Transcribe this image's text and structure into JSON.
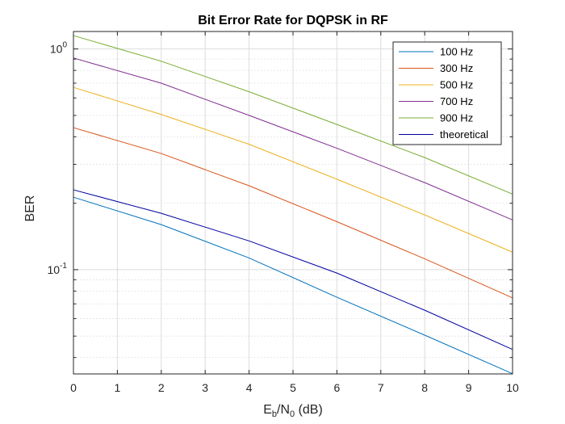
{
  "chart_data": {
    "type": "line",
    "title": "Bit Error Rate for DQPSK in RF",
    "xlabel": {
      "main": "E",
      "sub1": "b",
      "mid": "/N",
      "sub2": "0",
      "unit": " (dB)"
    },
    "ylabel": "BER",
    "xlim": [
      0,
      10
    ],
    "ylim": [
      0.0337,
      1.2
    ],
    "yscale": "log",
    "grid": true,
    "minor_grid": true,
    "legend_position": "top-right",
    "x_ticks": [
      {
        "value": 0,
        "label": "0"
      },
      {
        "value": 1,
        "label": "1"
      },
      {
        "value": 2,
        "label": "2"
      },
      {
        "value": 3,
        "label": "3"
      },
      {
        "value": 4,
        "label": "4"
      },
      {
        "value": 5,
        "label": "5"
      },
      {
        "value": 6,
        "label": "6"
      },
      {
        "value": 7,
        "label": "7"
      },
      {
        "value": 8,
        "label": "8"
      },
      {
        "value": 9,
        "label": "9"
      },
      {
        "value": 10,
        "label": "10"
      }
    ],
    "y_ticks": [
      {
        "value": 1,
        "base": "10",
        "exp": "0"
      },
      {
        "value": 0.1,
        "base": "10",
        "exp": "-1"
      }
    ],
    "x": [
      0,
      2,
      4,
      6,
      8,
      10
    ],
    "series": [
      {
        "name": "100 Hz",
        "color": "#0072BD",
        "values": [
          0.213,
          0.16,
          0.113,
          0.075,
          0.0505,
          0.0338
        ]
      },
      {
        "name": "300 Hz",
        "color": "#D95319",
        "values": [
          0.44,
          0.336,
          0.24,
          0.165,
          0.112,
          0.0745
        ]
      },
      {
        "name": "500 Hz",
        "color": "#EDB120",
        "values": [
          0.67,
          0.505,
          0.37,
          0.257,
          0.177,
          0.12
        ]
      },
      {
        "name": "700 Hz",
        "color": "#7E2F8E",
        "values": [
          0.91,
          0.7,
          0.5,
          0.355,
          0.248,
          0.168
        ]
      },
      {
        "name": "900 Hz",
        "color": "#77AC30",
        "values": [
          1.15,
          0.88,
          0.64,
          0.455,
          0.322,
          0.22
        ]
      },
      {
        "name": "theoretical",
        "color": "#0000A0",
        "values": [
          0.23,
          0.18,
          0.135,
          0.0965,
          0.0655,
          0.0435
        ]
      }
    ]
  }
}
